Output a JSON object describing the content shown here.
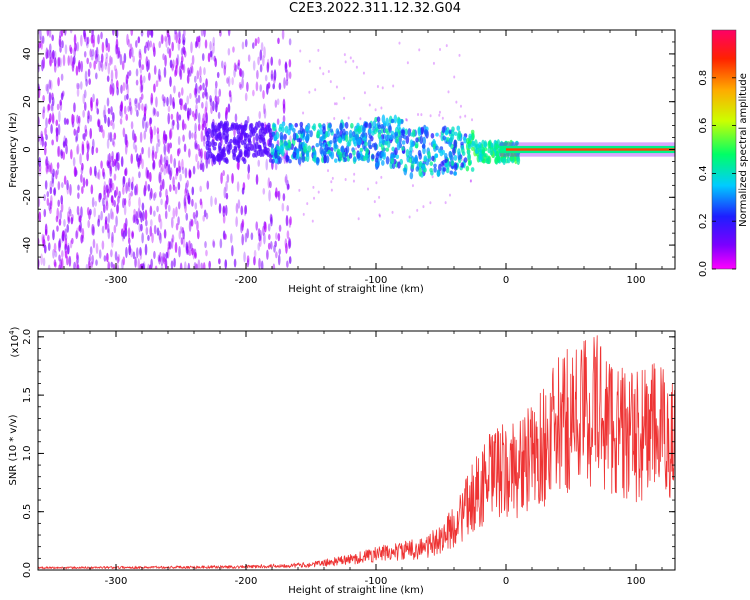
{
  "title": "C2E3.2022.311.12.32.G04",
  "colorbar": {
    "label": "Normalized spectral amplitude",
    "ticks": [
      "0.0",
      "0.2",
      "0.4",
      "0.6",
      "0.8"
    ],
    "tick_values": [
      0.0,
      0.2,
      0.4,
      0.6,
      0.8
    ],
    "range": [
      0,
      1
    ]
  },
  "chart_data": [
    {
      "type": "heatmap",
      "xlabel": "Height of straight line (km)",
      "ylabel": "Frequency (Hz)",
      "xlim": [
        -360,
        130
      ],
      "ylim": [
        -50,
        50
      ],
      "xticks": [
        -300,
        -200,
        -100,
        0,
        100
      ],
      "xtick_labels": [
        "-300",
        "-200",
        "-100",
        "0",
        "100"
      ],
      "yticks": [
        -40,
        -20,
        0,
        20,
        40
      ],
      "ytick_labels": [
        "-40",
        "-20",
        "0",
        "20",
        "40"
      ],
      "description_values": {
        "noise_band_x": [
          -360,
          -165
        ],
        "signal_start_x": -230,
        "tone_x": [
          0,
          130
        ],
        "tone_freq": 0
      }
    },
    {
      "type": "line",
      "xlabel": "Height of straight line (km)",
      "ylabel": "SNR (10 * v/v)",
      "scale_label": "(x10",
      "scale_exp": "4",
      "scale_close": ")",
      "xlim": [
        -360,
        130
      ],
      "ylim": [
        0,
        2.05
      ],
      "xticks": [
        -300,
        -200,
        -100,
        0,
        100
      ],
      "xtick_labels": [
        "-300",
        "-200",
        "-100",
        "0",
        "100"
      ],
      "yticks": [
        0.0,
        0.5,
        1.0,
        1.5,
        2.0
      ],
      "ytick_labels": [
        "0.0",
        "0.5",
        "1.0",
        "1.5",
        "2.0"
      ],
      "line_color": "#ee3333",
      "envelope": {
        "x": [
          -360,
          -200,
          -150,
          -120,
          -100,
          -80,
          -60,
          -45,
          -35,
          -25,
          -15,
          -5,
          0,
          10,
          20,
          30,
          40,
          50,
          60,
          70,
          80,
          90,
          100,
          110,
          120,
          130
        ],
        "y": [
          0.02,
          0.03,
          0.05,
          0.1,
          0.15,
          0.18,
          0.22,
          0.35,
          0.5,
          0.7,
          0.85,
          0.95,
          0.9,
          1.0,
          1.05,
          1.2,
          1.35,
          1.45,
          1.5,
          1.55,
          1.4,
          1.3,
          1.25,
          1.35,
          1.3,
          1.25
        ]
      }
    }
  ]
}
